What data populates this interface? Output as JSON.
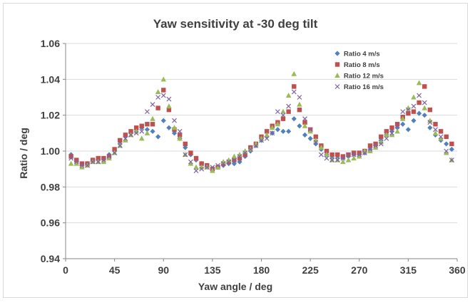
{
  "chart_data": {
    "type": "scatter",
    "title": "Yaw sensitivity at -30 deg tilt",
    "xlabel": "Yaw angle / deg",
    "ylabel": "Ratio / deg",
    "xlim": [
      0,
      360
    ],
    "ylim": [
      0.94,
      1.06
    ],
    "xticks": [
      0,
      45,
      90,
      135,
      180,
      225,
      270,
      315,
      360
    ],
    "yticks": [
      0.94,
      0.96,
      0.98,
      1.0,
      1.02,
      1.04,
      1.06
    ],
    "xtick_labels": [
      "0",
      "45",
      "90",
      "135",
      "180",
      "225",
      "270",
      "315",
      "360"
    ],
    "ytick_labels": [
      "0.94",
      "0.96",
      "0.98",
      "1.00",
      "1.02",
      "1.04",
      "1.06"
    ],
    "grid": "horizontal",
    "legend_position": "top-right",
    "x": [
      5,
      10,
      15,
      20,
      25,
      30,
      35,
      40,
      45,
      50,
      55,
      60,
      65,
      70,
      75,
      80,
      85,
      90,
      95,
      100,
      105,
      110,
      115,
      120,
      125,
      130,
      135,
      140,
      145,
      150,
      155,
      160,
      165,
      170,
      175,
      180,
      185,
      190,
      195,
      200,
      205,
      210,
      215,
      220,
      225,
      230,
      235,
      240,
      245,
      250,
      255,
      260,
      265,
      270,
      275,
      280,
      285,
      290,
      295,
      300,
      305,
      310,
      315,
      320,
      325,
      330,
      335,
      340,
      345,
      350,
      355
    ],
    "series": [
      {
        "name": "Ratio 4 m/s",
        "color": "#4f81bd",
        "marker": "diamond",
        "values": [
          0.998,
          0.994,
          0.992,
          0.993,
          0.995,
          0.995,
          0.996,
          0.998,
          1.0,
          1.004,
          1.008,
          1.01,
          1.012,
          1.013,
          1.012,
          1.011,
          1.008,
          1.017,
          1.013,
          1.01,
          1.007,
          1.002,
          0.998,
          0.995,
          0.993,
          0.991,
          0.99,
          0.991,
          0.992,
          0.993,
          0.993,
          0.994,
          0.997,
          1.0,
          1.003,
          1.006,
          1.008,
          1.01,
          1.012,
          1.011,
          1.011,
          1.018,
          1.014,
          1.009,
          1.007,
          1.004,
          1.001,
          0.998,
          0.996,
          0.996,
          0.996,
          0.997,
          0.998,
          0.998,
          0.999,
          1.001,
          1.003,
          1.006,
          1.009,
          1.011,
          1.013,
          1.015,
          1.012,
          1.017,
          1.021,
          1.02,
          1.013,
          1.009,
          1.006,
          1.004,
          1.001
        ]
      },
      {
        "name": "Ratio 8 m/s",
        "color": "#c0504d",
        "marker": "square",
        "values": [
          0.997,
          0.995,
          0.993,
          0.993,
          0.995,
          0.996,
          0.996,
          0.997,
          1.001,
          1.006,
          1.009,
          1.011,
          1.013,
          1.014,
          1.015,
          1.015,
          1.024,
          1.034,
          1.023,
          1.012,
          1.009,
          1.004,
          0.999,
          0.996,
          0.993,
          0.992,
          0.99,
          0.991,
          0.993,
          0.994,
          0.995,
          0.996,
          0.998,
          1.002,
          1.004,
          1.008,
          1.011,
          1.014,
          1.016,
          1.018,
          1.022,
          1.036,
          1.023,
          1.016,
          1.012,
          1.008,
          1.003,
          1.0,
          0.998,
          0.998,
          0.997,
          0.998,
          0.999,
          0.999,
          1.0,
          1.003,
          1.004,
          1.008,
          1.011,
          1.013,
          1.015,
          1.019,
          1.021,
          1.022,
          1.027,
          1.036,
          1.023,
          1.015,
          1.011,
          1.008,
          1.004
        ]
      },
      {
        "name": "Ratio 12 m/s",
        "color": "#9bbb59",
        "marker": "triangle",
        "values": [
          0.993,
          0.993,
          0.991,
          0.992,
          0.994,
          0.994,
          0.994,
          0.996,
          0.999,
          1.003,
          1.006,
          1.009,
          1.011,
          1.007,
          1.01,
          1.018,
          1.033,
          1.04,
          1.025,
          1.013,
          1.007,
          0.998,
          0.993,
          0.991,
          0.991,
          0.991,
          0.989,
          0.991,
          0.994,
          0.995,
          0.997,
          0.998,
          1.0,
          1.001,
          1.004,
          1.007,
          1.009,
          1.013,
          1.015,
          1.022,
          1.031,
          1.043,
          1.026,
          1.014,
          1.011,
          1.006,
          1.002,
          0.998,
          0.995,
          0.995,
          0.994,
          0.995,
          0.996,
          0.997,
          1.0,
          1.0,
          1.002,
          1.005,
          1.009,
          1.009,
          1.011,
          1.018,
          1.024,
          1.03,
          1.038,
          1.024,
          1.017,
          1.01,
          1.007,
          0.999,
          0.995
        ]
      },
      {
        "name": "Ratio 16 m/s",
        "color": "#8064a2",
        "marker": "cross",
        "values": [
          0.996,
          0.994,
          0.992,
          0.992,
          0.994,
          0.994,
          0.995,
          0.997,
          0.999,
          1.003,
          1.007,
          1.009,
          1.01,
          1.011,
          1.022,
          1.026,
          1.03,
          1.031,
          1.029,
          1.017,
          1.011,
          0.998,
          0.994,
          0.989,
          0.99,
          0.991,
          0.991,
          0.992,
          0.993,
          0.994,
          0.995,
          0.997,
          0.999,
          1.001,
          1.003,
          1.006,
          1.007,
          1.01,
          1.022,
          1.02,
          1.025,
          1.033,
          1.03,
          1.018,
          1.012,
          1.005,
          0.998,
          0.996,
          0.995,
          0.995,
          0.996,
          0.998,
          0.998,
          0.998,
          0.999,
          1.001,
          1.003,
          1.004,
          1.007,
          1.01,
          1.014,
          1.022,
          1.023,
          1.025,
          1.031,
          1.027,
          1.016,
          1.012,
          1.008,
          1.0,
          0.995
        ]
      }
    ]
  }
}
